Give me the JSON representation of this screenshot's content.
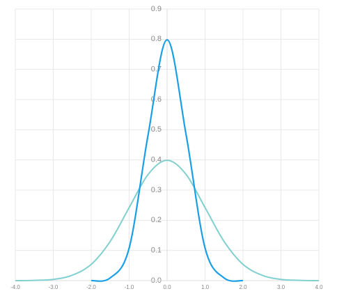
{
  "chart_data": {
    "type": "line",
    "x": [
      -4,
      -3.5,
      -3,
      -2.5,
      -2,
      -1.5,
      -1,
      -0.5,
      0,
      0.5,
      1,
      1.5,
      2,
      2.5,
      3,
      3.5,
      4
    ],
    "series": [
      {
        "color": "#1a9fe6",
        "values": [
          null,
          null,
          null,
          null,
          0.0,
          0.009,
          0.108,
          0.484,
          0.798,
          0.484,
          0.108,
          0.009,
          0.0,
          null,
          null,
          null,
          null
        ]
      },
      {
        "color": "#80d0cf",
        "values": [
          0.0,
          0.001,
          0.004,
          0.018,
          0.054,
          0.13,
          0.242,
          0.352,
          0.399,
          0.352,
          0.242,
          0.13,
          0.054,
          0.018,
          0.004,
          0.001,
          0.0
        ]
      }
    ],
    "xlim": [
      -4,
      4
    ],
    "xticks": [
      {
        "value": -4,
        "label": "-4.0"
      },
      {
        "value": -3,
        "label": "-3.0"
      },
      {
        "value": -2,
        "label": "-2.0"
      },
      {
        "value": -1,
        "label": "-1.0"
      },
      {
        "value": 0,
        "label": "0.0"
      },
      {
        "value": 1,
        "label": "1.0"
      },
      {
        "value": 2,
        "label": "2.0"
      },
      {
        "value": 3,
        "label": "3.0"
      },
      {
        "value": 4,
        "label": "4.0"
      }
    ],
    "ylim": [
      0,
      0.9
    ],
    "yticks": [
      {
        "value": 0,
        "label": "0.0"
      },
      0.1,
      0.2,
      0.3,
      0.4,
      0.5,
      0.6,
      0.7,
      0.8,
      0.9
    ],
    "grid": true
  }
}
